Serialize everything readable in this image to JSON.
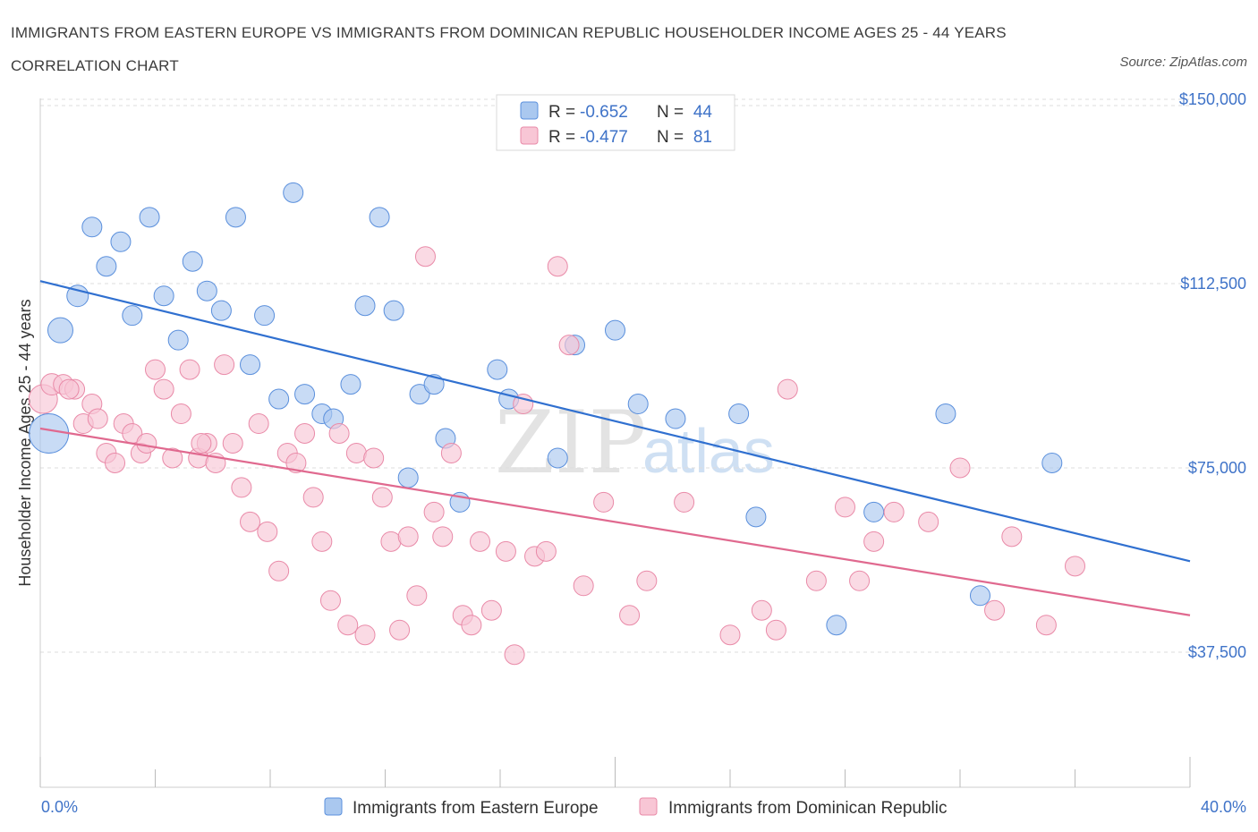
{
  "header": {
    "title": "IMMIGRANTS FROM EASTERN EUROPE VS IMMIGRANTS FROM DOMINICAN REPUBLIC HOUSEHOLDER INCOME AGES 25 - 44 YEARS CORRELATION CHART",
    "source": "Source: ZipAtlas.com"
  },
  "watermark": {
    "zip": "ZIP",
    "atlas": "atlas"
  },
  "legend": {
    "rows": [
      {
        "r_label": "R = ",
        "r_value": "-0.652",
        "n_label": "N = ",
        "n_value": "44"
      },
      {
        "r_label": "R = ",
        "r_value": "-0.477",
        "n_label": "N = ",
        "n_value": "81"
      }
    ]
  },
  "chart_data": {
    "type": "scatter",
    "title": "IMMIGRANTS FROM EASTERN EUROPE VS IMMIGRANTS FROM DOMINICAN REPUBLIC HOUSEHOLDER INCOME AGES 25 - 44 YEARS CORRELATION CHART",
    "xlabel": "",
    "ylabel": "Householder Income Ages 25 - 44 years",
    "xlim": [
      0,
      40
    ],
    "ylim": [
      10000,
      152000
    ],
    "x_tick_labels": [
      "0.0%",
      "40.0%"
    ],
    "y_ticks": [
      {
        "value": 150000,
        "label": "$150,000"
      },
      {
        "value": 112500,
        "label": "$112,500"
      },
      {
        "value": 75000,
        "label": "$75,000"
      },
      {
        "value": 37500,
        "label": "$37,500"
      }
    ],
    "grid": "horizontal dashed",
    "colors": {
      "Immigrants from Eastern Europe": "#4a84d8",
      "Immigrants from Dominican Republic": "#e0698f"
    },
    "series": [
      {
        "name": "Immigrants from Eastern Europe",
        "fill": "#aac8ef",
        "stroke": "#5a8fdc",
        "line": "#3070d0",
        "R": -0.652,
        "N": 44,
        "trend": {
          "x": [
            0,
            40
          ],
          "y": [
            113000,
            56000
          ]
        },
        "points": [
          [
            0.3,
            82000,
            22
          ],
          [
            0.7,
            103000,
            14
          ],
          [
            1.3,
            110000,
            12
          ],
          [
            1.8,
            124000,
            11
          ],
          [
            2.3,
            116000,
            11
          ],
          [
            2.8,
            121000,
            11
          ],
          [
            3.2,
            106000,
            11
          ],
          [
            3.8,
            126000,
            11
          ],
          [
            4.3,
            110000,
            11
          ],
          [
            4.8,
            101000,
            11
          ],
          [
            5.3,
            117000,
            11
          ],
          [
            5.8,
            111000,
            11
          ],
          [
            6.3,
            107000,
            11
          ],
          [
            6.8,
            126000,
            11
          ],
          [
            7.3,
            96000,
            11
          ],
          [
            7.8,
            106000,
            11
          ],
          [
            8.3,
            89000,
            11
          ],
          [
            8.8,
            131000,
            11
          ],
          [
            9.2,
            90000,
            11
          ],
          [
            9.8,
            86000,
            11
          ],
          [
            10.2,
            85000,
            11
          ],
          [
            10.8,
            92000,
            11
          ],
          [
            11.3,
            108000,
            11
          ],
          [
            11.8,
            126000,
            11
          ],
          [
            12.3,
            107000,
            11
          ],
          [
            12.8,
            73000,
            11
          ],
          [
            13.2,
            90000,
            11
          ],
          [
            13.7,
            92000,
            11
          ],
          [
            14.1,
            81000,
            11
          ],
          [
            14.6,
            68000,
            11
          ],
          [
            15.9,
            95000,
            11
          ],
          [
            16.3,
            89000,
            11
          ],
          [
            18.0,
            77000,
            11
          ],
          [
            18.6,
            100000,
            11
          ],
          [
            20.0,
            103000,
            11
          ],
          [
            20.8,
            88000,
            11
          ],
          [
            22.1,
            85000,
            11
          ],
          [
            24.3,
            86000,
            11
          ],
          [
            24.9,
            65000,
            11
          ],
          [
            27.7,
            43000,
            11
          ],
          [
            29.0,
            66000,
            11
          ],
          [
            31.5,
            86000,
            11
          ],
          [
            32.7,
            49000,
            11
          ],
          [
            35.2,
            76000,
            11
          ]
        ]
      },
      {
        "name": "Immigrants from Dominican Republic",
        "fill": "#f8c6d5",
        "stroke": "#e98aa8",
        "line": "#e0698f",
        "R": -0.477,
        "N": 81,
        "trend": {
          "x": [
            0,
            40
          ],
          "y": [
            83000,
            45000
          ]
        },
        "points": [
          [
            0.1,
            89000,
            16
          ],
          [
            0.4,
            92000,
            12
          ],
          [
            0.8,
            92000,
            11
          ],
          [
            1.2,
            91000,
            11
          ],
          [
            1.5,
            84000,
            11
          ],
          [
            1.8,
            88000,
            11
          ],
          [
            2.0,
            85000,
            11
          ],
          [
            2.3,
            78000,
            11
          ],
          [
            2.6,
            76000,
            11
          ],
          [
            2.9,
            84000,
            11
          ],
          [
            3.2,
            82000,
            11
          ],
          [
            3.5,
            78000,
            11
          ],
          [
            3.7,
            80000,
            11
          ],
          [
            4.0,
            95000,
            11
          ],
          [
            4.3,
            91000,
            11
          ],
          [
            4.6,
            77000,
            11
          ],
          [
            4.9,
            86000,
            11
          ],
          [
            5.2,
            95000,
            11
          ],
          [
            5.5,
            77000,
            11
          ],
          [
            5.8,
            80000,
            11
          ],
          [
            6.1,
            76000,
            11
          ],
          [
            6.4,
            96000,
            11
          ],
          [
            6.7,
            80000,
            11
          ],
          [
            7.0,
            71000,
            11
          ],
          [
            7.3,
            64000,
            11
          ],
          [
            7.6,
            84000,
            11
          ],
          [
            7.9,
            62000,
            11
          ],
          [
            8.3,
            54000,
            11
          ],
          [
            8.6,
            78000,
            11
          ],
          [
            8.9,
            76000,
            11
          ],
          [
            9.2,
            82000,
            11
          ],
          [
            9.5,
            69000,
            11
          ],
          [
            9.8,
            60000,
            11
          ],
          [
            10.1,
            48000,
            11
          ],
          [
            10.4,
            82000,
            11
          ],
          [
            10.7,
            43000,
            11
          ],
          [
            11.0,
            78000,
            11
          ],
          [
            11.3,
            41000,
            11
          ],
          [
            11.6,
            77000,
            11
          ],
          [
            11.9,
            69000,
            11
          ],
          [
            12.2,
            60000,
            11
          ],
          [
            12.5,
            42000,
            11
          ],
          [
            12.8,
            61000,
            11
          ],
          [
            13.1,
            49000,
            11
          ],
          [
            13.4,
            118000,
            11
          ],
          [
            13.7,
            66000,
            11
          ],
          [
            14.0,
            61000,
            11
          ],
          [
            14.3,
            78000,
            11
          ],
          [
            14.7,
            45000,
            11
          ],
          [
            15.0,
            43000,
            11
          ],
          [
            15.3,
            60000,
            11
          ],
          [
            15.7,
            46000,
            11
          ],
          [
            16.2,
            58000,
            11
          ],
          [
            16.5,
            37000,
            11
          ],
          [
            16.8,
            88000,
            11
          ],
          [
            17.2,
            57000,
            11
          ],
          [
            17.6,
            58000,
            11
          ],
          [
            18.0,
            116000,
            11
          ],
          [
            18.4,
            100000,
            11
          ],
          [
            18.9,
            51000,
            11
          ],
          [
            19.6,
            68000,
            11
          ],
          [
            20.5,
            45000,
            11
          ],
          [
            21.1,
            52000,
            11
          ],
          [
            22.4,
            68000,
            11
          ],
          [
            24.0,
            41000,
            11
          ],
          [
            25.1,
            46000,
            11
          ],
          [
            25.6,
            42000,
            11
          ],
          [
            26.0,
            91000,
            11
          ],
          [
            27.0,
            52000,
            11
          ],
          [
            28.0,
            67000,
            11
          ],
          [
            28.5,
            52000,
            11
          ],
          [
            29.0,
            60000,
            11
          ],
          [
            29.7,
            66000,
            11
          ],
          [
            30.9,
            64000,
            11
          ],
          [
            32.0,
            75000,
            11
          ],
          [
            33.2,
            46000,
            11
          ],
          [
            33.8,
            61000,
            11
          ],
          [
            35.0,
            43000,
            11
          ],
          [
            36.0,
            55000,
            11
          ],
          [
            1.0,
            91000,
            11
          ],
          [
            5.6,
            80000,
            11
          ]
        ]
      }
    ]
  },
  "bottom_legend": [
    {
      "label": "Immigrants from Eastern Europe"
    },
    {
      "label": "Immigrants from Dominican Republic"
    }
  ]
}
